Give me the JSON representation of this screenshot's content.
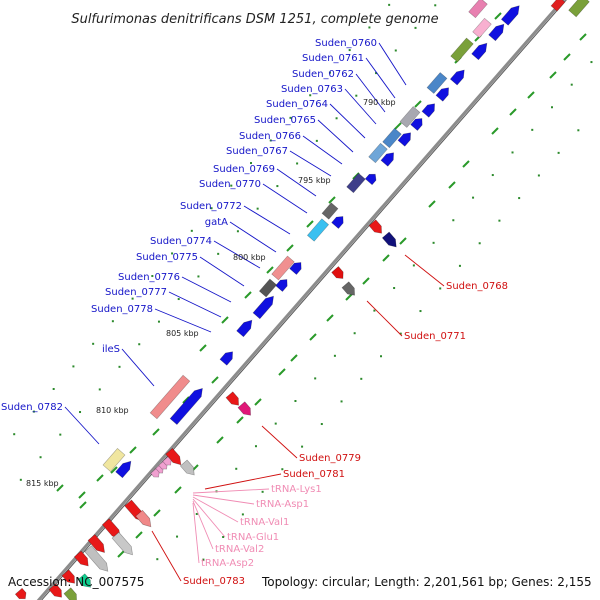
{
  "title": "Sulfurimonas denitrificans DSM 1251, complete genome",
  "footer": {
    "accession": "Accession: NC_007575",
    "topology": "Topology: circular; Length: 2,201,561 bp; Genes: 2,155"
  },
  "scale_marks": [
    "790 kbp",
    "795 kbp",
    "800 kbp",
    "805 kbp",
    "810 kbp",
    "815 kbp"
  ],
  "labels_forward": [
    "Suden_0760",
    "Suden_0761",
    "Suden_0762",
    "Suden_0763",
    "Suden_0764",
    "Suden_0765",
    "Suden_0766",
    "Suden_0767",
    "Suden_0769",
    "Suden_0770",
    "Suden_0772",
    "gatA",
    "Suden_0774",
    "Suden_0775",
    "Suden_0776",
    "Suden_0777",
    "Suden_0778",
    "ileS",
    "Suden_0782"
  ],
  "labels_reverse": [
    "Suden_0768",
    "Suden_0771",
    "Suden_0779",
    "Suden_0781",
    "Suden_0783"
  ],
  "labels_rna": [
    "tRNA-Lys1",
    "tRNA-Asp1",
    "tRNA-Val1",
    "tRNA-Glu1",
    "tRNA-Val2",
    "tRNA-Asp2"
  ],
  "colors": {
    "forward_label": "#1515c8",
    "reverse_label": "#d01010",
    "rna_label": "#f08cb4",
    "cds_forward": "#1010e0",
    "cds_reverse": "#e01010",
    "backbone": "#808080",
    "tick": "#2a9a2a"
  }
}
